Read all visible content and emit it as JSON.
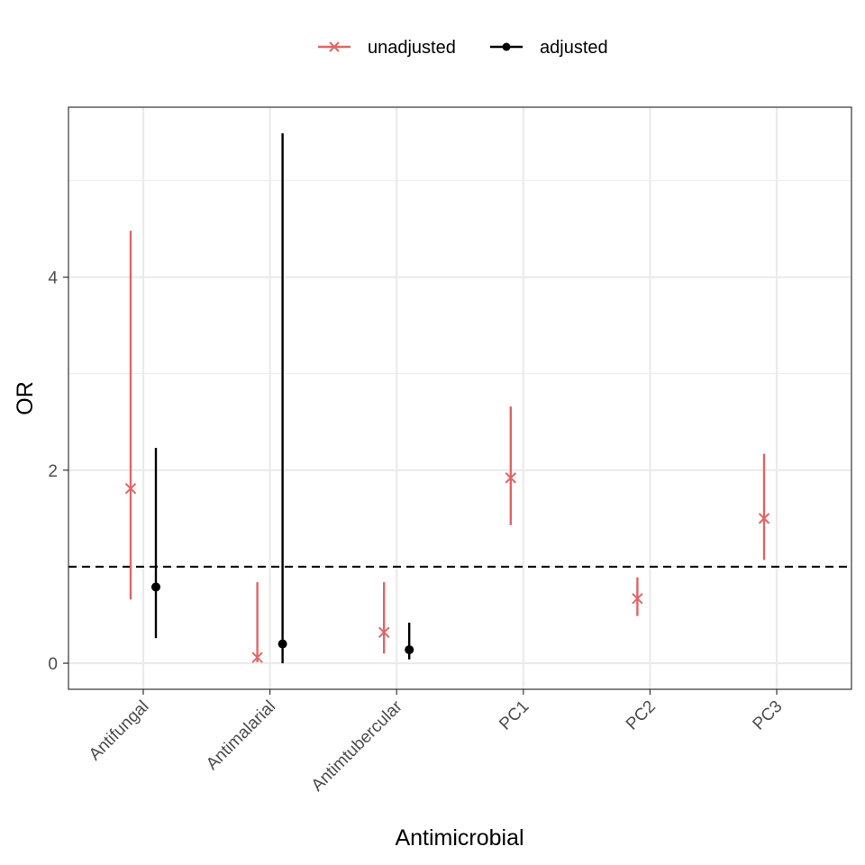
{
  "chart_data": {
    "type": "errorbar",
    "title": "",
    "xlabel": "Antimicrobial",
    "ylabel": "OR",
    "ylim": [
      -0.27,
      5.76
    ],
    "yticks": [
      0,
      2,
      4
    ],
    "reference_line": {
      "y": 1,
      "style": "dashed",
      "color": "#000000"
    },
    "grid": true,
    "legend_position": "top",
    "categories": [
      "Antifungal",
      "Antimalarial",
      "Antimtubercular",
      "PC1",
      "PC2",
      "PC3"
    ],
    "series": [
      {
        "name": "unadjusted",
        "color": "#E06666",
        "marker": "cross",
        "points": [
          {
            "category": "Antifungal",
            "or": 1.81,
            "lower": 0.66,
            "upper": 4.48
          },
          {
            "category": "Antimalarial",
            "or": 0.06,
            "lower": 0.01,
            "upper": 0.84
          },
          {
            "category": "Antimtubercular",
            "or": 0.32,
            "lower": 0.1,
            "upper": 0.84
          },
          {
            "category": "PC1",
            "or": 1.92,
            "lower": 1.43,
            "upper": 2.66
          },
          {
            "category": "PC2",
            "or": 0.67,
            "lower": 0.49,
            "upper": 0.89
          },
          {
            "category": "PC3",
            "or": 1.5,
            "lower": 1.07,
            "upper": 2.17
          }
        ]
      },
      {
        "name": "adjusted",
        "color": "#000000",
        "marker": "dot",
        "points": [
          {
            "category": "Antifungal",
            "or": 0.79,
            "lower": 0.26,
            "upper": 2.23
          },
          {
            "category": "Antimalarial",
            "or": 0.2,
            "lower": 0.0,
            "upper": 5.49
          },
          {
            "category": "Antimtubercular",
            "or": 0.14,
            "lower": 0.04,
            "upper": 0.42
          }
        ]
      }
    ]
  }
}
